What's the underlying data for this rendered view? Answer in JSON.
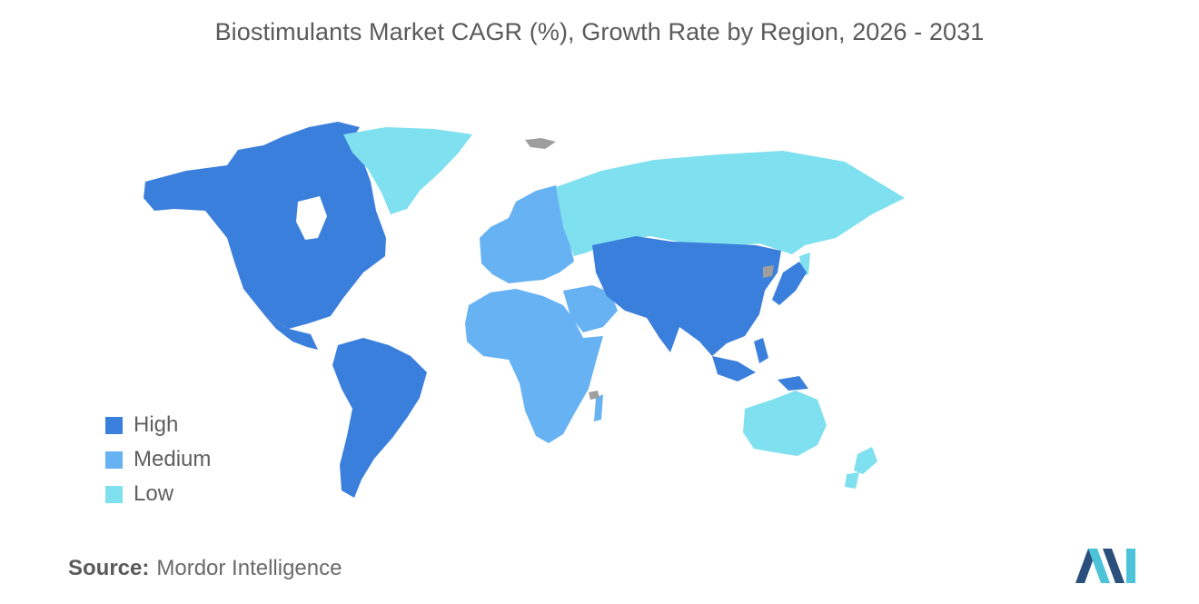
{
  "title": "Biostimulants Market CAGR (%), Growth Rate by Region, 2026 - 2031",
  "colors": {
    "high": "#3b7fdc",
    "medium": "#66b2f3",
    "low": "#7fe0ef",
    "no_data": "#9e9e9e",
    "logo_dark": "#2b4f7d",
    "logo_light": "#4cc3d9"
  },
  "legend": [
    {
      "label": "High",
      "color": "#3b7fdc"
    },
    {
      "label": "Medium",
      "color": "#66b2f3"
    },
    {
      "label": "Low",
      "color": "#7fe0ef"
    }
  ],
  "regions": [
    {
      "name": "North America",
      "level": "High"
    },
    {
      "name": "South America",
      "level": "High"
    },
    {
      "name": "Asia-Pacific",
      "level": "High"
    },
    {
      "name": "Europe",
      "level": "Medium"
    },
    {
      "name": "Middle East and Africa",
      "level": "Medium"
    },
    {
      "name": "Russia",
      "level": "Low"
    },
    {
      "name": "Greenland",
      "level": "Low"
    },
    {
      "name": "Australia",
      "level": "Low"
    }
  ],
  "source": {
    "label": "Source:",
    "value": "Mordor Intelligence"
  }
}
